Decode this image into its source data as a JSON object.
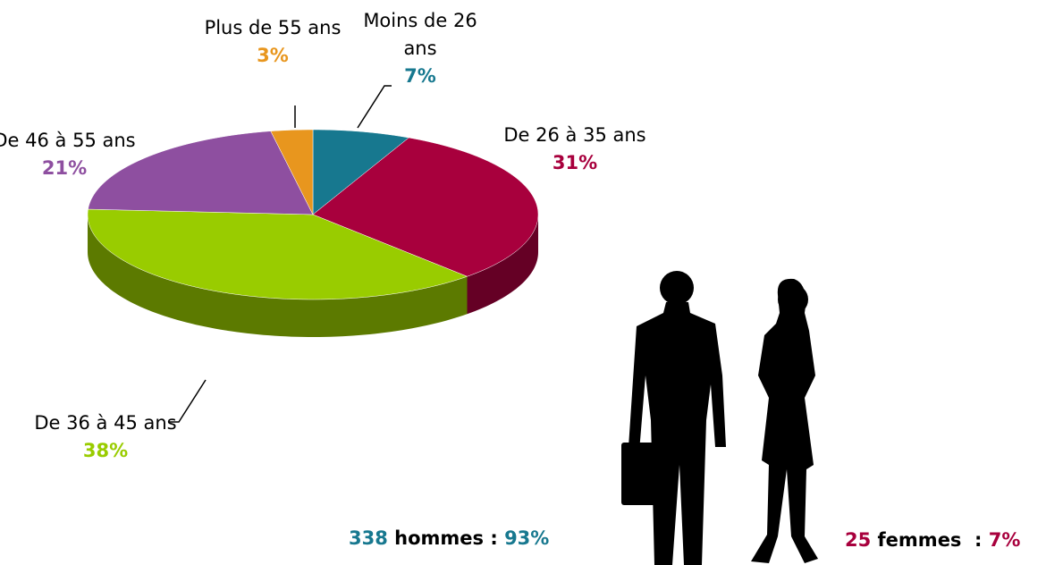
{
  "chart_data": {
    "type": "pie",
    "categories": [
      "Moins de 26 ans",
      "De 26 à 35 ans",
      "De 36 à 45 ans",
      "De 46 à 55 ans",
      "Plus de 55 ans"
    ],
    "values": [
      7,
      31,
      38,
      21,
      3
    ],
    "value_labels": [
      "7%",
      "31%",
      "38%",
      "21%",
      "3%"
    ],
    "colors": [
      "#17788f",
      "#a8003d",
      "#99cc00",
      "#8e4fa0",
      "#e8961e"
    ]
  },
  "summary": [
    {
      "count": "338",
      "label": "hommes :",
      "share": "93%"
    },
    {
      "count": "25",
      "label": "femmes  :",
      "share": "7%"
    }
  ]
}
